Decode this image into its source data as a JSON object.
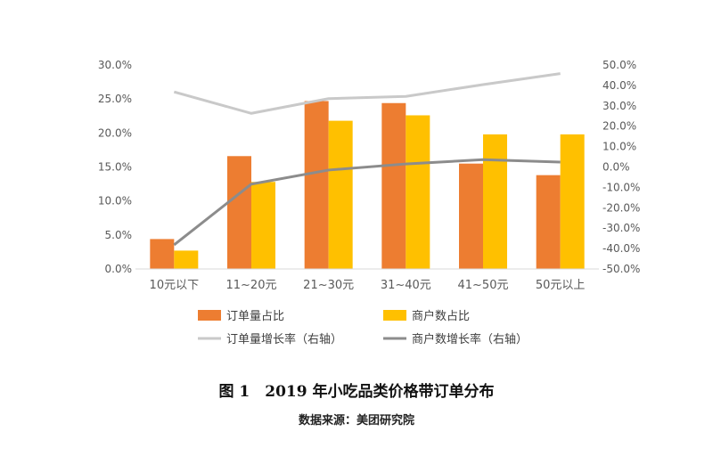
{
  "chart_data": {
    "type": "bar",
    "categories": [
      "10元以下",
      "11~20元",
      "21~30元",
      "31~40元",
      "41~50元",
      "50元以上"
    ],
    "series": [
      {
        "name": "订单量占比",
        "kind": "bar",
        "axis": "left",
        "color": "#ED7D31",
        "values": [
          4.4,
          16.6,
          24.7,
          24.4,
          15.5,
          13.8
        ]
      },
      {
        "name": "商户数占比",
        "kind": "bar",
        "axis": "left",
        "color": "#FFC000",
        "values": [
          2.7,
          12.8,
          21.8,
          22.6,
          19.8,
          19.8
        ]
      },
      {
        "name": "订单量增长率（右轴）",
        "kind": "line",
        "axis": "right",
        "color": "#C9C9C9",
        "values": [
          36.8,
          26.3,
          33.5,
          34.6,
          40.4,
          45.8
        ]
      },
      {
        "name": "商户数增长率（右轴）",
        "kind": "line",
        "axis": "right",
        "color": "#8C8C8C",
        "values": [
          -38.2,
          -8.4,
          -1.5,
          1.5,
          3.6,
          2.4
        ]
      }
    ],
    "left_axis": {
      "ylim": [
        0,
        30
      ],
      "ticks": [
        "0.0%",
        "5.0%",
        "10.0%",
        "15.0%",
        "20.0%",
        "25.0%",
        "30.0%"
      ]
    },
    "right_axis": {
      "ylim": [
        -50,
        50
      ],
      "ticks": [
        "-50.0%",
        "-40.0%",
        "-30.0%",
        "-20.0%",
        "-10.0%",
        "0.0%",
        "10.0%",
        "20.0%",
        "30.0%",
        "40.0%",
        "50.0%"
      ]
    },
    "grid": false,
    "legend_placement": "bottom"
  },
  "caption": {
    "title": "图 1　2019 年小吃品类价格带订单分布",
    "source": "数据来源：美团研究院"
  }
}
